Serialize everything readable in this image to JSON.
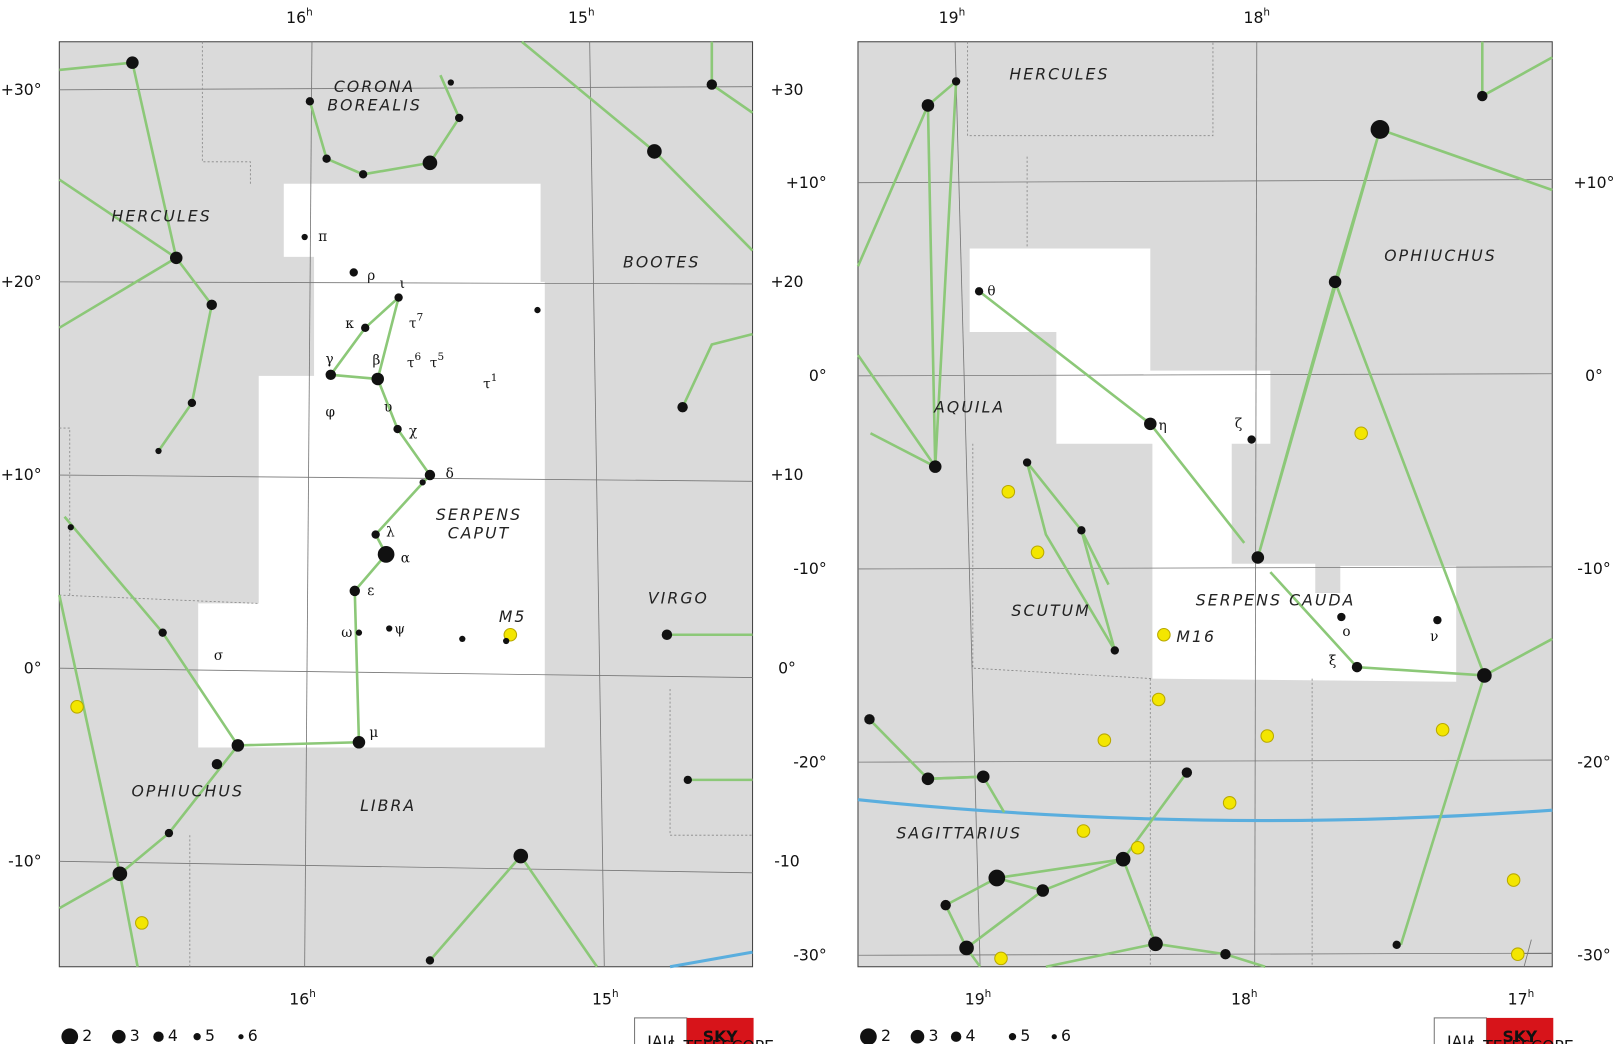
{
  "panels": [
    {
      "ra_top": [
        {
          "text": "16",
          "sup": "h"
        },
        {
          "text": "15",
          "sup": "h"
        }
      ],
      "ra_bottom": [
        {
          "text": "16",
          "sup": "h"
        },
        {
          "text": "15",
          "sup": "h"
        }
      ],
      "dec_left": [
        "+30°",
        "+20°",
        "+10°",
        "0°",
        "-10°"
      ],
      "dec_right": [
        "+30",
        "+20",
        "+10",
        "0°",
        "-10"
      ],
      "constellations": [
        [
          "CORONA",
          "BOREALIS"
        ],
        [
          "HERCULES"
        ],
        [
          "BOOTES"
        ],
        [
          "SERPENS",
          "CAPUT"
        ],
        [
          "VIRGO"
        ],
        [
          "OPHIUCHUS"
        ],
        [
          "LIBRA"
        ]
      ],
      "star_labels": [
        {
          "text": "π"
        },
        {
          "text": "ρ"
        },
        {
          "text": "ι"
        },
        {
          "text": "κ"
        },
        {
          "text": "τ",
          "sup": "7"
        },
        {
          "text": "γ"
        },
        {
          "text": "β"
        },
        {
          "text": "τ",
          "sup": "6"
        },
        {
          "text": "τ",
          "sup": "5"
        },
        {
          "text": "τ",
          "sup": "1"
        },
        {
          "text": "φ"
        },
        {
          "text": "υ"
        },
        {
          "text": "χ"
        },
        {
          "text": "δ"
        },
        {
          "text": "λ"
        },
        {
          "text": "α"
        },
        {
          "text": "ε"
        },
        {
          "text": "ω"
        },
        {
          "text": "ψ"
        },
        {
          "text": "μ"
        },
        {
          "text": "σ"
        }
      ],
      "objects": [
        "M5"
      ],
      "legend": [
        2,
        3,
        4,
        5,
        6
      ],
      "logo": {
        "iau": "IAU",
        "sky": "SKY",
        "telescope": "& TELESCOPE"
      }
    },
    {
      "ra_top": [
        {
          "text": "19",
          "sup": "h"
        },
        {
          "text": "18",
          "sup": "h"
        }
      ],
      "ra_bottom": [
        {
          "text": "19",
          "sup": "h"
        },
        {
          "text": "18",
          "sup": "h"
        },
        {
          "text": "17",
          "sup": "h"
        }
      ],
      "dec_left": [
        "+10°",
        "0°",
        "-10°",
        "-20°",
        "-30°"
      ],
      "dec_right": [
        "+10°",
        "0°",
        "-10°",
        "-20°",
        "-30°"
      ],
      "constellations": [
        [
          "HERCULES"
        ],
        [
          "OPHIUCHUS"
        ],
        [
          "AQUILA"
        ],
        [
          "SCUTUM"
        ],
        [
          "SERPENS CAUDA"
        ],
        [
          "SAGITTARIUS"
        ]
      ],
      "star_labels": [
        {
          "text": "θ"
        },
        {
          "text": "η"
        },
        {
          "text": "ζ"
        },
        {
          "text": "ο"
        },
        {
          "text": "ν"
        },
        {
          "text": "ξ"
        }
      ],
      "objects": [
        "M16"
      ],
      "legend": [
        2,
        3,
        4,
        5,
        6
      ],
      "logo": {
        "iau": "IAU",
        "sky": "SKY",
        "telescope": "& TELESCOPE"
      }
    }
  ]
}
